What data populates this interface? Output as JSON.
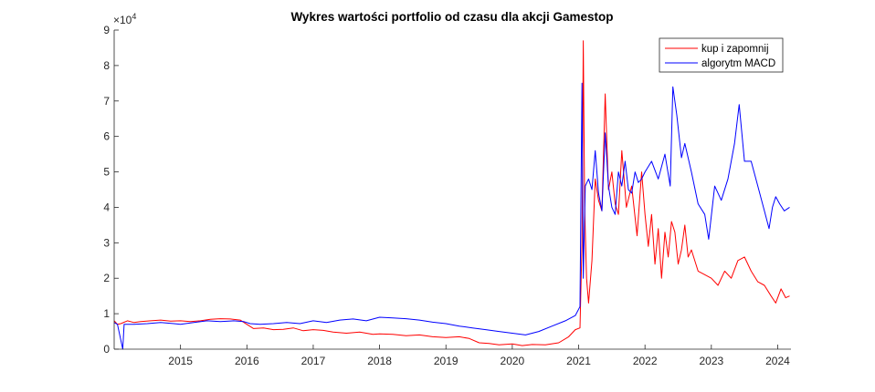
{
  "chart_data": {
    "type": "line",
    "title": "Wykres wartości portfolio od czasu dla akcji Gamestop",
    "xlabel": "",
    "ylabel": "",
    "y_exponent_label": "×10",
    "y_exponent_power": "4",
    "xlim": [
      2014.0,
      2024.2
    ],
    "ylim": [
      0,
      9
    ],
    "grid": false,
    "legend_position": "top-right",
    "x_tick_labels": [
      "2015",
      "2016",
      "2017",
      "2018",
      "2019",
      "2020",
      "2021",
      "2022",
      "2023",
      "2024"
    ],
    "x_ticks": [
      2015,
      2016,
      2017,
      2018,
      2019,
      2020,
      2021,
      2022,
      2023,
      2024
    ],
    "y_tick_labels": [
      "0",
      "1",
      "2",
      "3",
      "4",
      "5",
      "6",
      "7",
      "8",
      "9"
    ],
    "y_ticks": [
      0,
      1,
      2,
      3,
      4,
      5,
      6,
      7,
      8,
      9
    ],
    "series": [
      {
        "name": "kup i zapomnij",
        "color": "#ff0000",
        "x": [
          2014.0,
          2014.05,
          2014.1,
          2014.2,
          2014.3,
          2014.4,
          2014.55,
          2014.7,
          2014.85,
          2015.0,
          2015.15,
          2015.3,
          2015.45,
          2015.6,
          2015.75,
          2015.9,
          2016.0,
          2016.1,
          2016.25,
          2016.4,
          2016.55,
          2016.7,
          2016.85,
          2017.0,
          2017.15,
          2017.3,
          2017.5,
          2017.7,
          2017.9,
          2018.0,
          2018.2,
          2018.4,
          2018.6,
          2018.8,
          2019.0,
          2019.2,
          2019.35,
          2019.5,
          2019.65,
          2019.8,
          2020.0,
          2020.15,
          2020.3,
          2020.5,
          2020.7,
          2020.85,
          2020.95,
          2021.02,
          2021.05,
          2021.07,
          2021.09,
          2021.12,
          2021.15,
          2021.2,
          2021.25,
          2021.3,
          2021.35,
          2021.4,
          2021.45,
          2021.5,
          2021.55,
          2021.6,
          2021.65,
          2021.72,
          2021.8,
          2021.88,
          2021.95,
          2022.0,
          2022.05,
          2022.1,
          2022.15,
          2022.2,
          2022.25,
          2022.3,
          2022.35,
          2022.4,
          2022.45,
          2022.5,
          2022.55,
          2022.6,
          2022.65,
          2022.7,
          2022.8,
          2022.9,
          2023.0,
          2023.1,
          2023.2,
          2023.3,
          2023.4,
          2023.5,
          2023.6,
          2023.7,
          2023.8,
          2023.9,
          2023.97,
          2024.05,
          2024.12,
          2024.18
        ],
        "y": [
          0.8,
          0.7,
          0.72,
          0.8,
          0.75,
          0.78,
          0.8,
          0.82,
          0.79,
          0.8,
          0.78,
          0.8,
          0.84,
          0.86,
          0.85,
          0.82,
          0.7,
          0.58,
          0.6,
          0.55,
          0.56,
          0.6,
          0.52,
          0.55,
          0.53,
          0.48,
          0.45,
          0.48,
          0.42,
          0.43,
          0.42,
          0.38,
          0.4,
          0.35,
          0.33,
          0.35,
          0.3,
          0.18,
          0.16,
          0.12,
          0.15,
          0.1,
          0.13,
          0.12,
          0.18,
          0.35,
          0.55,
          0.6,
          3.0,
          8.7,
          4.0,
          2.0,
          1.3,
          2.5,
          4.8,
          4.2,
          3.9,
          7.2,
          4.5,
          5.0,
          4.1,
          3.8,
          5.6,
          4.0,
          4.6,
          3.2,
          5.0,
          3.8,
          2.9,
          3.8,
          2.4,
          3.4,
          2.0,
          3.3,
          2.6,
          3.6,
          3.3,
          2.4,
          2.8,
          3.5,
          2.6,
          2.8,
          2.2,
          2.1,
          2.0,
          1.8,
          2.2,
          2.0,
          2.5,
          2.6,
          2.2,
          1.9,
          1.8,
          1.5,
          1.3,
          1.7,
          1.45,
          1.5
        ]
      },
      {
        "name": "algorytm MACD",
        "color": "#0000ff",
        "x": [
          2014.0,
          2014.05,
          2014.13,
          2014.15,
          2014.3,
          2014.5,
          2014.7,
          2014.9,
          2015.0,
          2015.2,
          2015.4,
          2015.6,
          2015.8,
          2015.95,
          2016.05,
          2016.2,
          2016.4,
          2016.6,
          2016.8,
          2017.0,
          2017.2,
          2017.4,
          2017.6,
          2017.8,
          2018.0,
          2018.2,
          2018.4,
          2018.6,
          2018.8,
          2019.0,
          2019.2,
          2019.4,
          2019.6,
          2019.8,
          2020.0,
          2020.2,
          2020.4,
          2020.6,
          2020.8,
          2020.95,
          2021.02,
          2021.05,
          2021.07,
          2021.1,
          2021.15,
          2021.2,
          2021.25,
          2021.3,
          2021.35,
          2021.4,
          2021.45,
          2021.5,
          2021.55,
          2021.6,
          2021.65,
          2021.7,
          2021.75,
          2021.8,
          2021.85,
          2021.9,
          2021.95,
          2022.0,
          2022.1,
          2022.2,
          2022.3,
          2022.38,
          2022.42,
          2022.48,
          2022.55,
          2022.6,
          2022.7,
          2022.8,
          2022.9,
          2022.96,
          2023.05,
          2023.15,
          2023.25,
          2023.35,
          2023.42,
          2023.5,
          2023.6,
          2023.7,
          2023.8,
          2023.87,
          2023.92,
          2023.97,
          2024.03,
          2024.1,
          2024.18
        ],
        "y": [
          0.75,
          0.7,
          0.0,
          0.7,
          0.7,
          0.72,
          0.75,
          0.72,
          0.7,
          0.75,
          0.8,
          0.78,
          0.8,
          0.78,
          0.72,
          0.7,
          0.72,
          0.75,
          0.72,
          0.8,
          0.75,
          0.82,
          0.85,
          0.8,
          0.9,
          0.88,
          0.86,
          0.82,
          0.76,
          0.72,
          0.65,
          0.6,
          0.55,
          0.5,
          0.45,
          0.4,
          0.5,
          0.65,
          0.8,
          0.95,
          1.2,
          7.5,
          2.0,
          4.6,
          4.8,
          4.5,
          5.6,
          4.4,
          3.9,
          6.1,
          4.6,
          4.0,
          3.8,
          5.0,
          4.6,
          5.3,
          4.5,
          4.4,
          5.0,
          4.7,
          4.8,
          5.0,
          5.3,
          4.8,
          5.5,
          4.6,
          7.4,
          6.6,
          5.4,
          5.8,
          5.0,
          4.1,
          3.8,
          3.1,
          4.6,
          4.2,
          4.8,
          5.8,
          6.9,
          5.3,
          5.3,
          4.6,
          3.9,
          3.4,
          4.0,
          4.3,
          4.1,
          3.9,
          4.0
        ]
      }
    ]
  }
}
